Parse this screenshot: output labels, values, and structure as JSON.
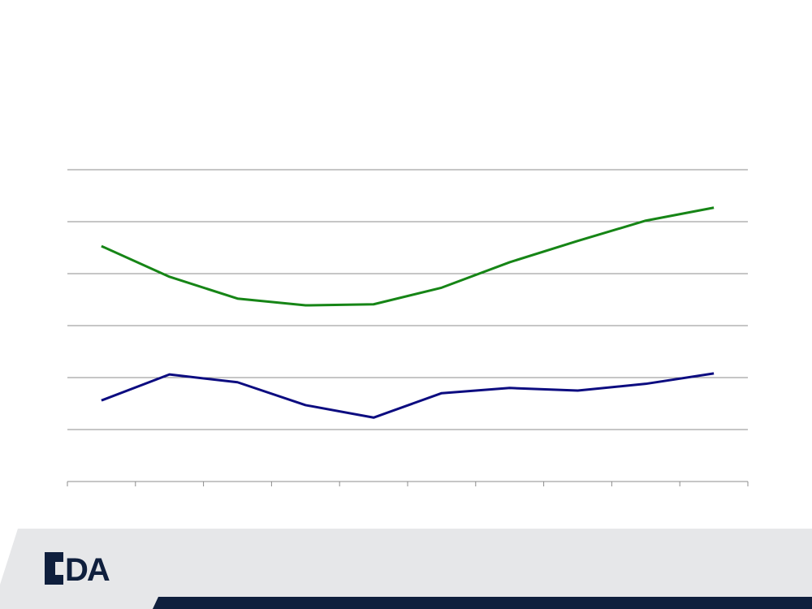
{
  "chart_data": {
    "type": "line",
    "categories": [
      null,
      null,
      null,
      null,
      null,
      null,
      null,
      null,
      null,
      null
    ],
    "series": [
      {
        "color": "#168516",
        "values": [
          4.53,
          3.94,
          3.52,
          3.39,
          3.41,
          3.73,
          4.22,
          4.63,
          5.02,
          5.27
        ]
      },
      {
        "color": "#0c0c80",
        "values": [
          1.56,
          2.06,
          1.91,
          1.47,
          1.23,
          1.7,
          1.8,
          1.75,
          1.88,
          2.08
        ]
      }
    ],
    "ylim": [
      0,
      6
    ],
    "yticks": [
      1,
      2,
      3,
      4,
      5,
      6
    ],
    "grid": true
  },
  "footer": {
    "logo_text": "DA"
  }
}
